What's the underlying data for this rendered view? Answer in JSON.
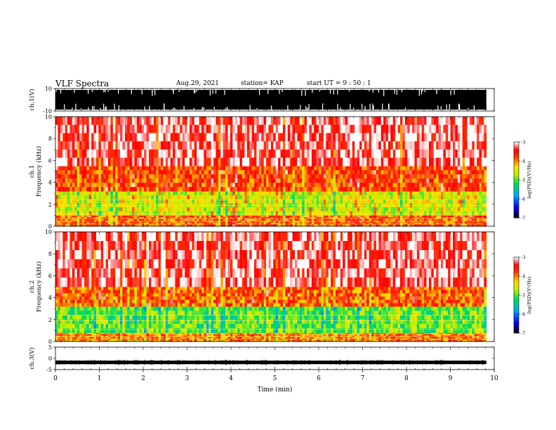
{
  "header": {
    "title": "VLF Spectra",
    "date": "Aug.29, 2021",
    "station": "station= KAP",
    "start": "start  UT  =   9  : 50 : 1"
  },
  "chart_data": [
    {
      "type": "line",
      "panel": "ch1-waveform",
      "ylabel": "ch.1(V)",
      "ylim": [
        -10,
        10
      ],
      "yticklabels": [
        "10",
        "-10"
      ],
      "x_range_min": [
        0,
        9.82
      ],
      "description_values": "dense waveform filling most of the ±10 V range"
    },
    {
      "type": "heatmap",
      "panel": "ch1-spectrogram",
      "ylabel": "ch.1\nFrequency  (kHz)",
      "ylim": [
        0,
        10
      ],
      "yticklabels": [
        "0",
        "2",
        "4",
        "6",
        "8",
        "10"
      ],
      "x_range_min": [
        0,
        9.82
      ],
      "colorbar": {
        "label": "log(PSD)(V²/Hz)",
        "range": [
          -7,
          -3
        ],
        "ticklabels": [
          "-3",
          "-4",
          "-5",
          "-6",
          "-7"
        ]
      },
      "bands": [
        {
          "freq_khz": [
            0,
            1.0
          ],
          "level": -3.9
        },
        {
          "freq_khz": [
            1.0,
            3.2
          ],
          "level": -4.6
        },
        {
          "freq_khz": [
            3.2,
            5.5
          ],
          "level": -3.8
        },
        {
          "freq_khz": [
            5.5,
            10
          ],
          "level": -3.3
        }
      ]
    },
    {
      "type": "heatmap",
      "panel": "ch2-spectrogram",
      "ylabel": "ch.2\nFrequency  (kHz)",
      "ylim": [
        0,
        10
      ],
      "yticklabels": [
        "0",
        "2",
        "4",
        "6",
        "8",
        "10"
      ],
      "x_range_min": [
        0,
        9.82
      ],
      "colorbar": {
        "label": "log(PSD)(V²/Hz)",
        "range": [
          -7,
          -3
        ],
        "ticklabels": [
          "-3",
          "-4",
          "-5",
          "-6",
          "-7"
        ]
      },
      "bands": [
        {
          "freq_khz": [
            0,
            0.8
          ],
          "level": -4.0
        },
        {
          "freq_khz": [
            0.8,
            3.2
          ],
          "level": -5.0
        },
        {
          "freq_khz": [
            3.2,
            5.0
          ],
          "level": -3.9
        },
        {
          "freq_khz": [
            5.0,
            10
          ],
          "level": -3.3
        }
      ]
    },
    {
      "type": "line",
      "panel": "ch3-waveform",
      "ylabel": "ch.3(V)",
      "ylim": [
        -5,
        5
      ],
      "yticklabels": [
        "5",
        "0",
        "-5"
      ],
      "x_range_min": [
        0,
        9.82
      ],
      "level_v": -1.8
    }
  ],
  "xaxis": {
    "label": "Time  (min)",
    "range": [
      0,
      10
    ],
    "ticklabels": [
      "0",
      "1",
      "2",
      "3",
      "4",
      "5",
      "6",
      "7",
      "8",
      "9",
      "10"
    ]
  }
}
